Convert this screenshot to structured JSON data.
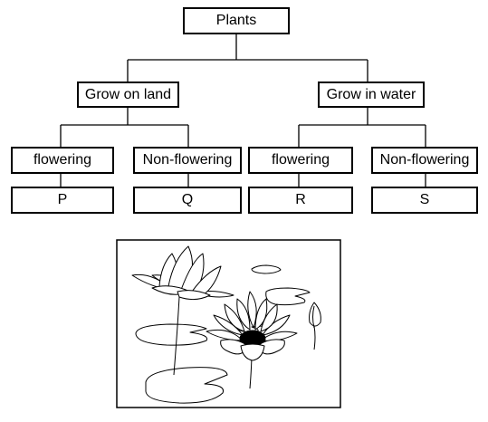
{
  "tree": {
    "root": "Plants",
    "branches": [
      {
        "label": "Grow on land",
        "children": [
          {
            "label": "flowering",
            "letter": "P"
          },
          {
            "label": "Non-flowering",
            "letter": "Q"
          }
        ]
      },
      {
        "label": "Grow in water",
        "children": [
          {
            "label": "flowering",
            "letter": "R"
          },
          {
            "label": "Non-flowering",
            "letter": "S"
          }
        ]
      }
    ]
  },
  "illustration": {
    "icon": "water-lily-icon"
  }
}
